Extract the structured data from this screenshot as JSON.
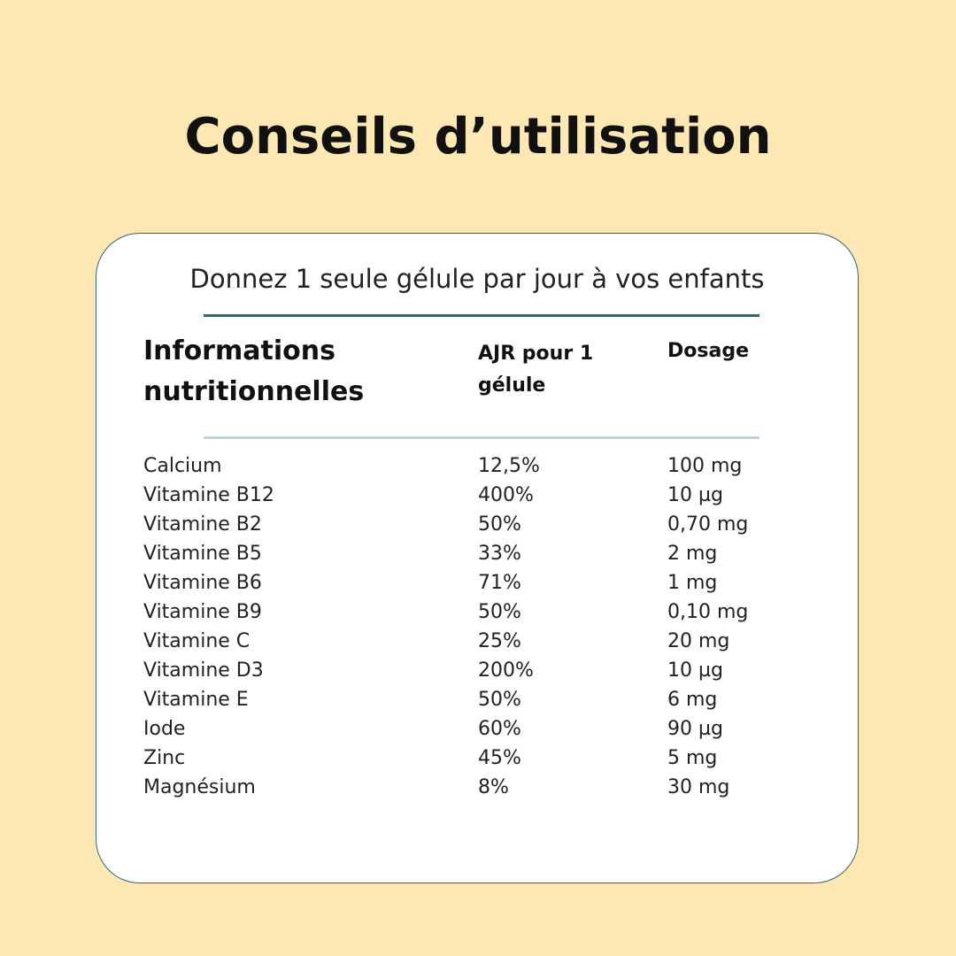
{
  "header": {
    "title": "Conseils d’utilisation"
  },
  "card": {
    "subtitle": "Donnez 1 seule gélule par jour à vos enfants"
  },
  "table": {
    "columns": [
      "Informations nutritionnelles",
      "AJR pour 1 gélule",
      "Dosage"
    ],
    "rows": [
      [
        "Calcium",
        "12,5%",
        "100 mg"
      ],
      [
        "Vitamine B12",
        "400%",
        "10 µg"
      ],
      [
        "Vitamine B2",
        "50%",
        "0,70 mg"
      ],
      [
        "Vitamine B5",
        "33%",
        "2 mg"
      ],
      [
        "Vitamine B6",
        "71%",
        "1 mg"
      ],
      [
        "Vitamine B9",
        "50%",
        "0,10 mg"
      ],
      [
        "Vitamine C",
        "25%",
        "20 mg"
      ],
      [
        "Vitamine D3",
        "200%",
        "10 µg"
      ],
      [
        "Vitamine E",
        "50%",
        "6 mg"
      ],
      [
        "Iode",
        "60%",
        "90 µg"
      ],
      [
        "Zinc",
        "45%",
        "5 mg"
      ],
      [
        "Magnésium",
        "8%",
        "30 mg"
      ]
    ]
  }
}
